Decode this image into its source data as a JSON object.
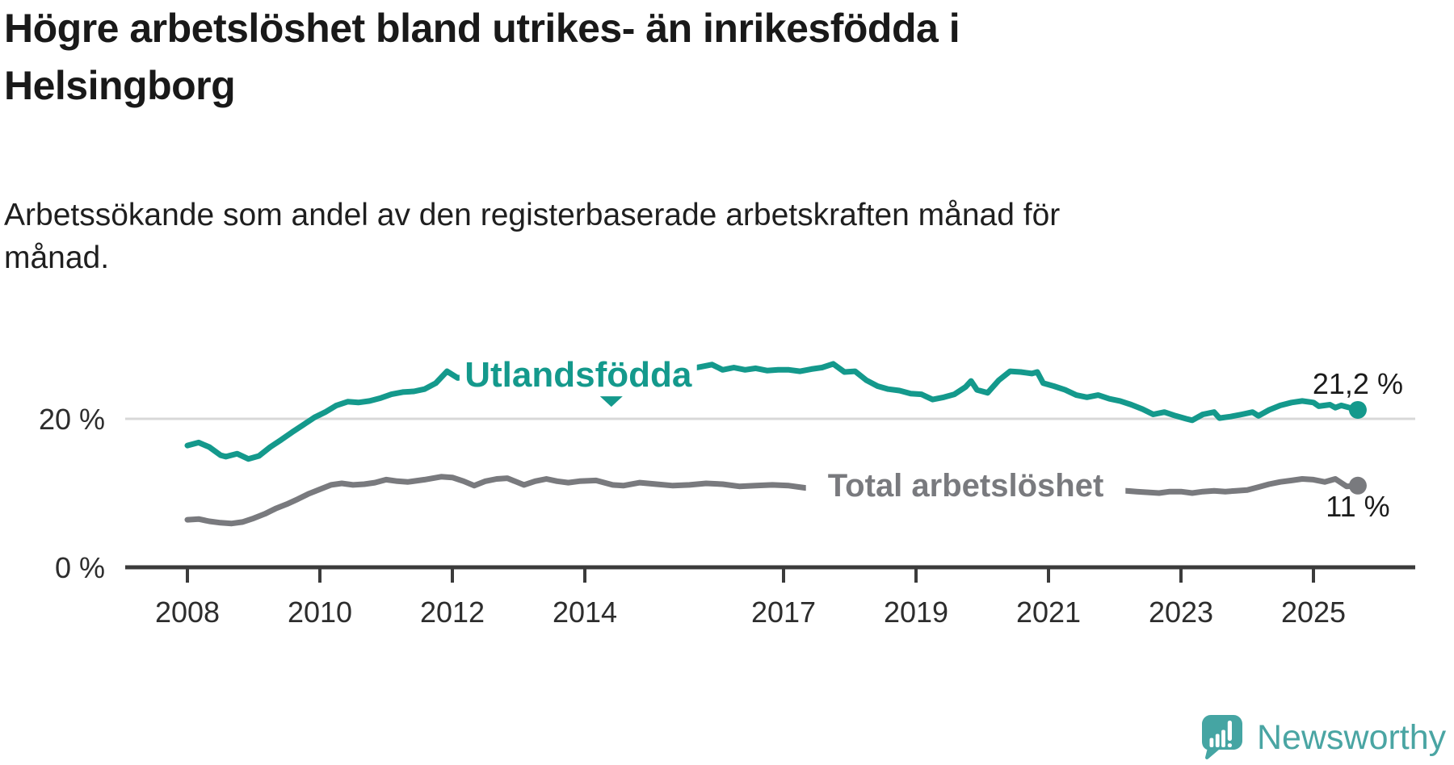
{
  "chart_data": {
    "type": "line",
    "title": "Högre arbetslöshet bland utrikes- än inrikesfödda i Helsingborg",
    "title_lines": [
      "Högre arbetslöshet bland utrikes- än inrikesfödda i",
      "Helsingborg"
    ],
    "subtitle": "Arbetssökande som andel av den registerbaserade arbetskraften månad för månad.",
    "subtitle_lines": [
      "Arbetssökande som andel av den registerbaserade arbetskraften månad för",
      "månad."
    ],
    "unit": "%",
    "grid": "horizontal, only at 20 %",
    "legend_position": "inline labels on lines",
    "x_ticks": [
      2008,
      2010,
      2012,
      2014,
      2017,
      2019,
      2021,
      2023,
      2025
    ],
    "x_range": [
      2008,
      2025.67
    ],
    "y_axis": {
      "ticks": [
        {
          "value": 20,
          "label": "20 %"
        },
        {
          "value": 0,
          "label": "0 %"
        }
      ],
      "range": [
        0,
        30
      ]
    },
    "colors": {
      "utlandsfodda": "#14998c",
      "total": "#797a7e",
      "axis": "#3b3b3b",
      "gridline": "#d8d8d8",
      "value_label_text": "#1b1b1b"
    },
    "series": [
      {
        "name": "Utlandsfödda",
        "color": "#14998c",
        "end_value": 21.2,
        "end_label": "21,2 %",
        "label": {
          "text": "Utlandsfödda",
          "x": 2013.9,
          "y": 26.0,
          "arrow": true
        },
        "points": [
          [
            2008.0,
            16.4
          ],
          [
            2008.17,
            16.8
          ],
          [
            2008.33,
            16.2
          ],
          [
            2008.5,
            15.1
          ],
          [
            2008.58,
            14.9
          ],
          [
            2008.75,
            15.3
          ],
          [
            2008.92,
            14.6
          ],
          [
            2009.08,
            15.0
          ],
          [
            2009.25,
            16.2
          ],
          [
            2009.42,
            17.2
          ],
          [
            2009.58,
            18.2
          ],
          [
            2009.75,
            19.2
          ],
          [
            2009.92,
            20.2
          ],
          [
            2010.08,
            20.9
          ],
          [
            2010.25,
            21.8
          ],
          [
            2010.42,
            22.3
          ],
          [
            2010.58,
            22.2
          ],
          [
            2010.75,
            22.4
          ],
          [
            2010.92,
            22.8
          ],
          [
            2011.08,
            23.3
          ],
          [
            2011.25,
            23.6
          ],
          [
            2011.42,
            23.7
          ],
          [
            2011.58,
            24.0
          ],
          [
            2011.75,
            24.8
          ],
          [
            2011.92,
            26.4
          ],
          [
            2012.08,
            25.5
          ],
          [
            2012.25,
            25.8
          ],
          [
            2012.5,
            26.0
          ],
          [
            2012.75,
            25.7
          ],
          [
            2013.0,
            25.9
          ],
          [
            2013.25,
            25.7
          ],
          [
            2013.5,
            25.5
          ],
          [
            2013.75,
            26.0
          ],
          [
            2014.0,
            26.2
          ],
          [
            2014.25,
            25.7
          ],
          [
            2014.5,
            26.0
          ],
          [
            2014.75,
            26.3
          ],
          [
            2015.0,
            26.1
          ],
          [
            2015.25,
            26.4
          ],
          [
            2015.5,
            26.6
          ],
          [
            2015.75,
            27.0
          ],
          [
            2015.92,
            27.3
          ],
          [
            2016.08,
            26.6
          ],
          [
            2016.25,
            26.9
          ],
          [
            2016.42,
            26.6
          ],
          [
            2016.58,
            26.8
          ],
          [
            2016.75,
            26.5
          ],
          [
            2016.92,
            26.6
          ],
          [
            2017.08,
            26.6
          ],
          [
            2017.25,
            26.4
          ],
          [
            2017.42,
            26.7
          ],
          [
            2017.58,
            26.9
          ],
          [
            2017.75,
            27.4
          ],
          [
            2017.92,
            26.3
          ],
          [
            2018.08,
            26.4
          ],
          [
            2018.25,
            25.2
          ],
          [
            2018.42,
            24.4
          ],
          [
            2018.58,
            24.0
          ],
          [
            2018.75,
            23.8
          ],
          [
            2018.92,
            23.4
          ],
          [
            2019.08,
            23.3
          ],
          [
            2019.25,
            22.6
          ],
          [
            2019.42,
            22.9
          ],
          [
            2019.58,
            23.3
          ],
          [
            2019.75,
            24.3
          ],
          [
            2019.83,
            25.1
          ],
          [
            2019.92,
            23.9
          ],
          [
            2020.08,
            23.5
          ],
          [
            2020.25,
            25.2
          ],
          [
            2020.42,
            26.4
          ],
          [
            2020.58,
            26.3
          ],
          [
            2020.75,
            26.1
          ],
          [
            2020.83,
            26.3
          ],
          [
            2020.92,
            24.8
          ],
          [
            2021.08,
            24.4
          ],
          [
            2021.25,
            23.9
          ],
          [
            2021.42,
            23.2
          ],
          [
            2021.58,
            22.9
          ],
          [
            2021.75,
            23.2
          ],
          [
            2021.92,
            22.7
          ],
          [
            2022.08,
            22.4
          ],
          [
            2022.25,
            21.9
          ],
          [
            2022.42,
            21.3
          ],
          [
            2022.58,
            20.6
          ],
          [
            2022.75,
            20.9
          ],
          [
            2022.92,
            20.4
          ],
          [
            2023.08,
            20.0
          ],
          [
            2023.17,
            19.8
          ],
          [
            2023.33,
            20.6
          ],
          [
            2023.5,
            20.9
          ],
          [
            2023.58,
            20.1
          ],
          [
            2023.75,
            20.3
          ],
          [
            2023.92,
            20.6
          ],
          [
            2024.08,
            20.9
          ],
          [
            2024.17,
            20.4
          ],
          [
            2024.33,
            21.2
          ],
          [
            2024.5,
            21.8
          ],
          [
            2024.67,
            22.2
          ],
          [
            2024.83,
            22.4
          ],
          [
            2025.0,
            22.2
          ],
          [
            2025.08,
            21.7
          ],
          [
            2025.25,
            21.9
          ],
          [
            2025.33,
            21.5
          ],
          [
            2025.42,
            21.8
          ],
          [
            2025.67,
            21.2
          ]
        ]
      },
      {
        "name": "Total arbetslöshet",
        "color": "#797a7e",
        "end_value": 11.0,
        "end_label": "11 %",
        "label": {
          "text": "Total arbetslöshet",
          "x": 2019.75,
          "y": 11.1,
          "arrow": false
        },
        "points": [
          [
            2008.0,
            6.4
          ],
          [
            2008.17,
            6.5
          ],
          [
            2008.33,
            6.2
          ],
          [
            2008.5,
            6.0
          ],
          [
            2008.67,
            5.9
          ],
          [
            2008.83,
            6.1
          ],
          [
            2009.0,
            6.6
          ],
          [
            2009.17,
            7.2
          ],
          [
            2009.33,
            7.9
          ],
          [
            2009.5,
            8.5
          ],
          [
            2009.67,
            9.2
          ],
          [
            2009.83,
            9.9
          ],
          [
            2010.0,
            10.5
          ],
          [
            2010.17,
            11.1
          ],
          [
            2010.33,
            11.3
          ],
          [
            2010.5,
            11.1
          ],
          [
            2010.67,
            11.2
          ],
          [
            2010.83,
            11.4
          ],
          [
            2011.0,
            11.8
          ],
          [
            2011.17,
            11.6
          ],
          [
            2011.33,
            11.5
          ],
          [
            2011.58,
            11.8
          ],
          [
            2011.83,
            12.2
          ],
          [
            2012.0,
            12.1
          ],
          [
            2012.17,
            11.6
          ],
          [
            2012.33,
            11.0
          ],
          [
            2012.5,
            11.6
          ],
          [
            2012.67,
            11.9
          ],
          [
            2012.83,
            12.0
          ],
          [
            2013.08,
            11.1
          ],
          [
            2013.25,
            11.6
          ],
          [
            2013.42,
            11.9
          ],
          [
            2013.58,
            11.6
          ],
          [
            2013.75,
            11.4
          ],
          [
            2013.92,
            11.6
          ],
          [
            2014.17,
            11.7
          ],
          [
            2014.42,
            11.1
          ],
          [
            2014.58,
            11.0
          ],
          [
            2014.83,
            11.4
          ],
          [
            2015.08,
            11.2
          ],
          [
            2015.33,
            11.0
          ],
          [
            2015.58,
            11.1
          ],
          [
            2015.83,
            11.3
          ],
          [
            2016.08,
            11.2
          ],
          [
            2016.33,
            10.9
          ],
          [
            2016.58,
            11.0
          ],
          [
            2016.83,
            11.1
          ],
          [
            2017.08,
            11.0
          ],
          [
            2017.33,
            10.7
          ],
          [
            2017.58,
            10.9
          ],
          [
            2017.83,
            11.0
          ],
          [
            2018.08,
            10.8
          ],
          [
            2018.33,
            10.5
          ],
          [
            2018.58,
            10.6
          ],
          [
            2018.83,
            10.7
          ],
          [
            2019.08,
            10.5
          ],
          [
            2019.33,
            10.3
          ],
          [
            2019.58,
            10.5
          ],
          [
            2019.83,
            10.8
          ],
          [
            2020.0,
            10.6
          ],
          [
            2020.17,
            11.2
          ],
          [
            2020.33,
            11.7
          ],
          [
            2020.5,
            11.8
          ],
          [
            2020.67,
            11.7
          ],
          [
            2020.83,
            11.9
          ],
          [
            2021.0,
            11.7
          ],
          [
            2021.17,
            11.4
          ],
          [
            2021.33,
            11.2
          ],
          [
            2021.5,
            10.9
          ],
          [
            2021.67,
            10.7
          ],
          [
            2021.83,
            10.5
          ],
          [
            2022.0,
            10.4
          ],
          [
            2022.17,
            10.3
          ],
          [
            2022.33,
            10.2
          ],
          [
            2022.5,
            10.1
          ],
          [
            2022.67,
            10.0
          ],
          [
            2022.83,
            10.2
          ],
          [
            2023.0,
            10.2
          ],
          [
            2023.17,
            10.0
          ],
          [
            2023.33,
            10.2
          ],
          [
            2023.5,
            10.3
          ],
          [
            2023.67,
            10.2
          ],
          [
            2023.83,
            10.3
          ],
          [
            2024.0,
            10.4
          ],
          [
            2024.17,
            10.8
          ],
          [
            2024.33,
            11.2
          ],
          [
            2024.5,
            11.5
          ],
          [
            2024.67,
            11.7
          ],
          [
            2024.83,
            11.9
          ],
          [
            2025.0,
            11.8
          ],
          [
            2025.17,
            11.5
          ],
          [
            2025.33,
            11.9
          ],
          [
            2025.5,
            10.9
          ],
          [
            2025.67,
            11.0
          ]
        ]
      }
    ]
  },
  "logo": {
    "text": "Newsworthy",
    "color": "#4aa5a3"
  }
}
